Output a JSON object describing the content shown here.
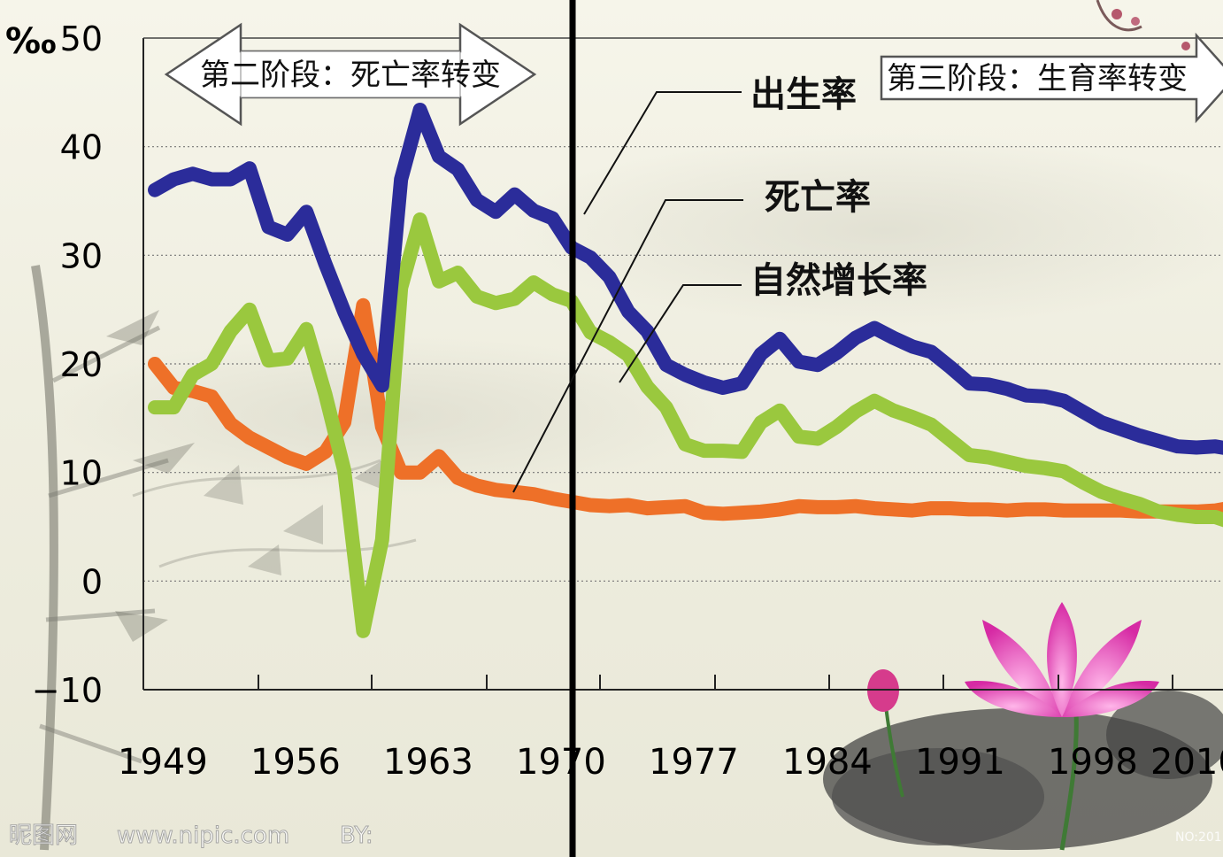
{
  "chart_data": {
    "type": "line",
    "unit": "‰",
    "ylim": [
      -10,
      50
    ],
    "yticks": [
      "50",
      "40",
      "30",
      "20",
      "10",
      "0",
      "−10"
    ],
    "xtick_labels": [
      "1949",
      "1956",
      "1963",
      "1970",
      "1977",
      "1984",
      "1991",
      "1998",
      "2010"
    ],
    "grid": true,
    "phases": [
      {
        "label": "第二阶段：死亡率转变"
      },
      {
        "label": "第三阶段：生育率转变"
      }
    ],
    "series": [
      {
        "name": "出生率",
        "color": "#2b2c9a",
        "x": [
          1949,
          1950,
          1951,
          1952,
          1953,
          1954,
          1955,
          1956,
          1957,
          1958,
          1959,
          1960,
          1961,
          1962,
          1963,
          1964,
          1965,
          1966,
          1967,
          1968,
          1969,
          1970,
          1971,
          1972,
          1973,
          1974,
          1975,
          1976,
          1977,
          1978,
          1979,
          1980,
          1981,
          1982,
          1983,
          1984,
          1985,
          1986,
          1987,
          1988,
          1989,
          1990,
          1991,
          1992,
          1993,
          1994,
          1995,
          1996,
          1997,
          1998,
          1999,
          2000,
          2001,
          2002,
          2003,
          2004,
          2005,
          2006
        ],
        "values": [
          36,
          37,
          37.5,
          37,
          37,
          38,
          32.6,
          31.9,
          34,
          29.2,
          24.8,
          20.9,
          18,
          37,
          43.4,
          39.1,
          37.9,
          35.1,
          34,
          35.6,
          34.1,
          33.4,
          30.7,
          29.8,
          28,
          24.8,
          23,
          19.9,
          19,
          18.3,
          17.8,
          18.2,
          20.9,
          22.3,
          20.2,
          19.9,
          21,
          22.4,
          23.3,
          22.4,
          21.6,
          21.1,
          19.7,
          18.2,
          18.1,
          17.7,
          17.1,
          17,
          16.6,
          15.6,
          14.6,
          14,
          13.4,
          12.9,
          12.4,
          12.3,
          12.4,
          12.1
        ]
      },
      {
        "name": "死亡率",
        "color": "#ee7028",
        "x": [
          1949,
          1950,
          1951,
          1952,
          1953,
          1954,
          1955,
          1956,
          1957,
          1958,
          1959,
          1960,
          1961,
          1962,
          1963,
          1964,
          1965,
          1966,
          1967,
          1968,
          1969,
          1970,
          1971,
          1972,
          1973,
          1974,
          1975,
          1976,
          1977,
          1978,
          1979,
          1980,
          1981,
          1982,
          1983,
          1984,
          1985,
          1986,
          1987,
          1988,
          1989,
          1990,
          1991,
          1992,
          1993,
          1994,
          1995,
          1996,
          1997,
          1998,
          1999,
          2000,
          2001,
          2002,
          2003,
          2004,
          2005,
          2006
        ],
        "values": [
          20,
          17.8,
          17.5,
          17,
          14.5,
          13.2,
          12.3,
          11.4,
          10.8,
          11.9,
          14.6,
          25.4,
          14.2,
          10,
          10,
          11.5,
          9.5,
          8.8,
          8.4,
          8.2,
          8,
          7.6,
          7.3,
          7,
          6.9,
          7,
          6.7,
          6.8,
          6.9,
          6.3,
          6.2,
          6.3,
          6.4,
          6.6,
          6.9,
          6.8,
          6.8,
          6.9,
          6.7,
          6.6,
          6.5,
          6.7,
          6.7,
          6.6,
          6.6,
          6.5,
          6.6,
          6.6,
          6.5,
          6.5,
          6.5,
          6.5,
          6.4,
          6.4,
          6.4,
          6.4,
          6.5,
          6.8
        ]
      },
      {
        "name": "自然增长率",
        "color": "#9ac83e",
        "x": [
          1949,
          1950,
          1951,
          1952,
          1953,
          1954,
          1955,
          1956,
          1957,
          1958,
          1959,
          1960,
          1961,
          1962,
          1963,
          1964,
          1965,
          1966,
          1967,
          1968,
          1969,
          1970,
          1971,
          1972,
          1973,
          1974,
          1975,
          1976,
          1977,
          1978,
          1979,
          1980,
          1981,
          1982,
          1983,
          1984,
          1985,
          1986,
          1987,
          1988,
          1989,
          1990,
          1991,
          1992,
          1993,
          1994,
          1995,
          1996,
          1997,
          1998,
          1999,
          2000,
          2001,
          2002,
          2003,
          2004,
          2005,
          2006
        ],
        "values": [
          16,
          16,
          19,
          20,
          23,
          25,
          20.3,
          20.5,
          23.2,
          17.2,
          10.2,
          -4.6,
          3.8,
          27,
          33.3,
          27.6,
          28.4,
          26.2,
          25.6,
          26,
          27.5,
          26.4,
          25.8,
          22.9,
          22,
          20.8,
          17.9,
          16,
          12.6,
          12,
          12,
          11.9,
          14.6,
          15.7,
          13.3,
          13.1,
          14.2,
          15.6,
          16.6,
          15.7,
          15.1,
          14.4,
          13,
          11.6,
          11.4,
          11,
          10.6,
          10.4,
          10.1,
          9.1,
          8.2,
          7.6,
          7.1,
          6.4,
          6.1,
          5.9,
          5.9,
          5.3
        ]
      }
    ]
  },
  "watermark": {
    "site_cn": "昵图网",
    "site_url": "www.nipic.com",
    "by": "BY:",
    "no": "NO:201"
  }
}
